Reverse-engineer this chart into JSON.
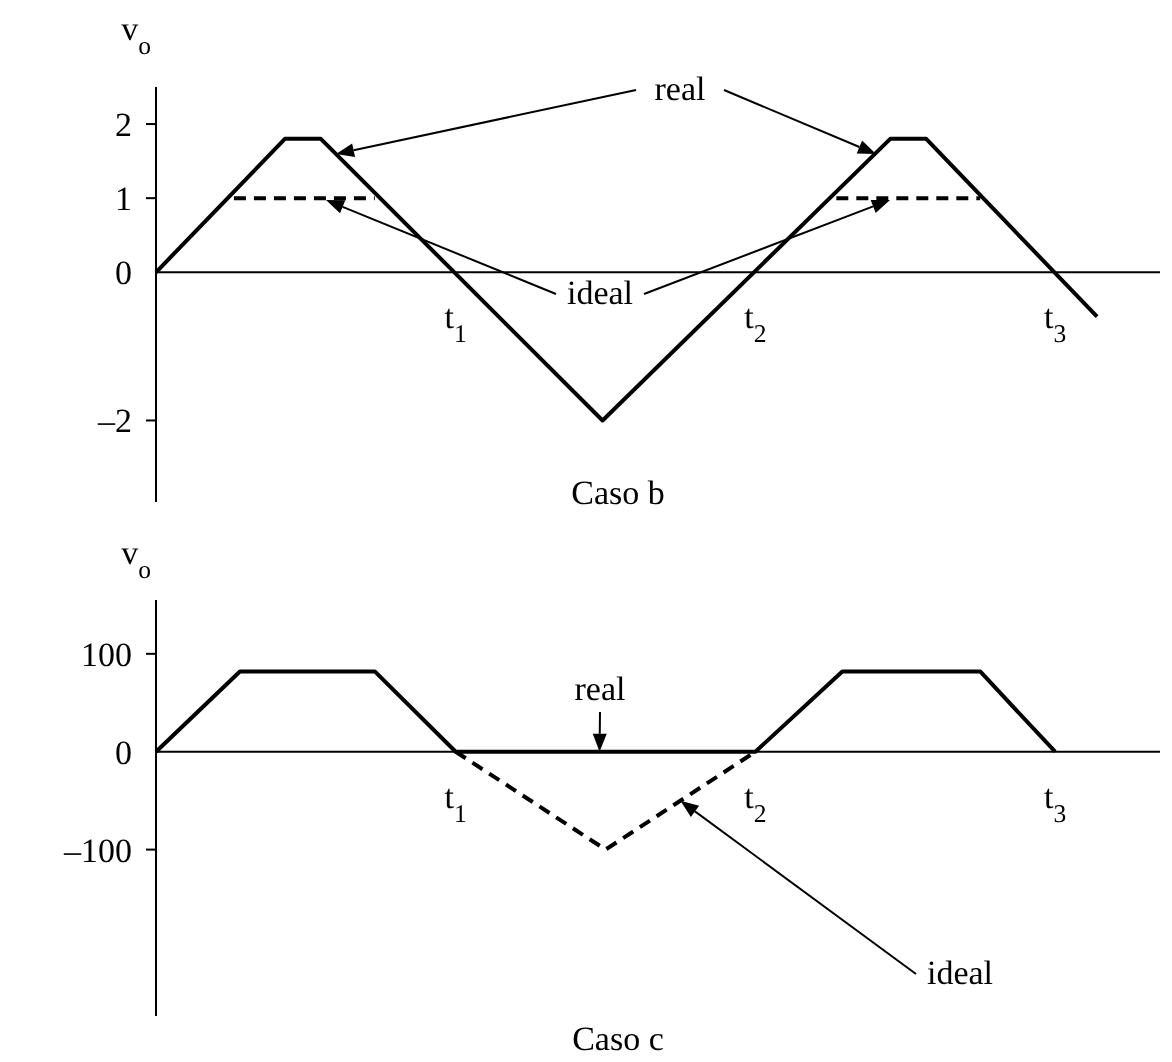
{
  "chart_data": [
    {
      "type": "line",
      "title": "Caso b",
      "ylabel": "v$_{o}$",
      "xlim": [
        0,
        3.35
      ],
      "ylim": [
        -3.1,
        2.5
      ],
      "xticks": [
        {
          "value": 1,
          "label": "t$_{1}$"
        },
        {
          "value": 2,
          "label": "t$_{2}$"
        },
        {
          "value": 3,
          "label": "t$_{3}$"
        }
      ],
      "yticks": [
        {
          "value": -2,
          "label": "–2"
        },
        0,
        1,
        2
      ],
      "series": [
        {
          "color": "#000000",
          "line_style": "solid",
          "x": [
            0,
            0.43,
            0.55,
            1.49,
            2.45,
            2.57,
            3.14
          ],
          "values": [
            0,
            1.8,
            1.8,
            -2,
            1.8,
            1.8,
            -0.6
          ]
        },
        {
          "color": "#000000",
          "line_style": "dashed",
          "x": [
            0.26,
            0.73
          ],
          "values": [
            1,
            1
          ]
        },
        {
          "color": "#000000",
          "line_style": "dashed",
          "x": [
            2.27,
            2.75
          ],
          "values": [
            1,
            1
          ]
        }
      ],
      "annotations": [
        "real",
        "ideal"
      ]
    },
    {
      "type": "line",
      "title": "Caso c",
      "ylabel": "v$_{o}$",
      "xlim": [
        0,
        3.35
      ],
      "ylim": [
        -270,
        155
      ],
      "xticks": [
        {
          "value": 1,
          "label": "t$_{1}$"
        },
        {
          "value": 2,
          "label": "t$_{2}$"
        },
        {
          "value": 3,
          "label": "t$_{3}$"
        }
      ],
      "yticks": [
        {
          "value": -100,
          "label": "–100"
        },
        0,
        100
      ],
      "series": [
        {
          "color": "#000000",
          "line_style": "solid",
          "x": [
            0,
            0.28,
            0.73,
            1,
            2,
            2.29,
            2.75,
            3
          ],
          "values": [
            0,
            82,
            82,
            0,
            0,
            82,
            82,
            0
          ]
        },
        {
          "color": "#000000",
          "line_style": "dashed",
          "x": [
            1,
            1.5,
            2
          ],
          "values": [
            0,
            -100,
            0
          ]
        }
      ],
      "annotations": [
        {
          "text": "real",
          "x": 1.48,
          "y": 0
        },
        {
          "text": "ideal",
          "x": 1.75,
          "y": -50
        }
      ]
    }
  ]
}
